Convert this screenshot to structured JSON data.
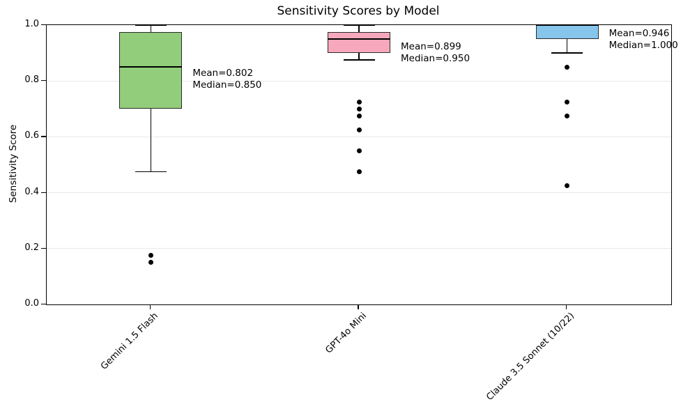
{
  "chart_data": {
    "type": "boxplot",
    "title": "Sensitivity Scores by Model",
    "xlabel": "",
    "ylabel": "Sensitivity Score",
    "ylim": [
      0.0,
      1.0
    ],
    "ytick_labels": [
      "0.0",
      "0.2",
      "0.4",
      "0.6",
      "0.8",
      "1.0"
    ],
    "grid": "horizontal-light-gray",
    "legend": "none",
    "categories": [
      "Gemini 1.5 Flash",
      "GPT-4o Mini",
      "Claude 3.5 Sonnet (10/22)"
    ],
    "series": [
      {
        "name": "Gemini 1.5 Flash",
        "box_color": "#92cd7c",
        "whisker_low": 0.475,
        "q1": 0.7,
        "median": 0.85,
        "q3": 0.975,
        "whisker_high": 1.0,
        "mean": 0.802,
        "outliers": [
          0.175,
          0.15
        ],
        "annotation": [
          "Mean=0.802",
          "Median=0.850"
        ]
      },
      {
        "name": "GPT-4o Mini",
        "box_color": "#f7a8bc",
        "whisker_low": 0.875,
        "q1": 0.9,
        "median": 0.95,
        "q3": 0.975,
        "whisker_high": 1.0,
        "mean": 0.899,
        "outliers": [
          0.725,
          0.7,
          0.675,
          0.625,
          0.55,
          0.475
        ],
        "annotation": [
          "Mean=0.899",
          "Median=0.950"
        ]
      },
      {
        "name": "Claude 3.5 Sonnet (10/22)",
        "box_color": "#86c5ec",
        "whisker_low": 0.9,
        "q1": 0.95,
        "median": 1.0,
        "q3": 1.0,
        "whisker_high": 1.0,
        "mean": 0.946,
        "outliers": [
          0.85,
          0.725,
          0.675,
          0.425
        ],
        "annotation": [
          "Mean=0.946",
          "Median=1.000"
        ]
      }
    ]
  }
}
